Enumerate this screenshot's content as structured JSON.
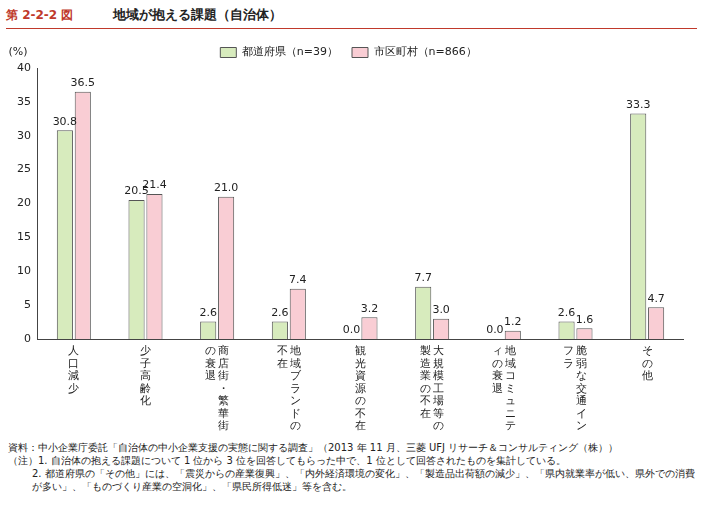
{
  "figure_number": "第 2-2-2 図",
  "chart_data": {
    "type": "bar",
    "title": "地域が抱える課題（自治体）",
    "y_label": "(%)",
    "categories": [
      "人口減少",
      "少子高齢化",
      "商店街・繁華街の衰退",
      "地域ブランドの不在",
      "観光資源の不在",
      "大規模工場等の製造業の不在",
      "地域コミュニティの衰退",
      "脆弱な交通インフラ",
      "その他"
    ],
    "series": [
      {
        "name": "都道府県（n=39）",
        "color": "#d7ebbd",
        "values": [
          30.8,
          20.5,
          2.6,
          2.6,
          0.0,
          7.7,
          0.0,
          2.6,
          33.3
        ],
        "value_labels": [
          "30.8",
          "20.5",
          "2.6",
          "2.6",
          "0.0",
          "7.7",
          "0.0",
          "2.6",
          "33.3"
        ]
      },
      {
        "name": "市区町村（n=866）",
        "color": "#f9cdd4",
        "values": [
          36.5,
          21.4,
          21.0,
          7.4,
          3.2,
          3.0,
          1.2,
          1.6,
          4.7
        ],
        "value_labels": [
          "36.5",
          "21.4",
          "21.0",
          "7.4",
          "3.2",
          "3.0",
          "1.2",
          "1.6",
          "4.7"
        ]
      }
    ],
    "ylim": [
      0,
      40
    ],
    "yticks": [
      0,
      5,
      10,
      15,
      20,
      25,
      30,
      35,
      40
    ],
    "grid": false,
    "legend": "top",
    "data_labels": true
  },
  "source": "資料：中小企業庁委託「自治体の中小企業支援の実態に関する調査」（2013 年 11 月、三菱 UFJ リサーチ＆コンサルティング（株））",
  "notes": [
    "（注）1. 自治体の抱える課題について 1 位から 3 位を回答してもらった中で、1 位として回答されたものを集計している。",
    "2. 都道府県の「その他」には、「震災からの産業復興」、「内外経済環境の変化」、「製造品出荷額の減少」、「県内就業率が低い、県外での消費が多い」、「ものづくり産業の空洞化」、「県民所得低迷」等を含む。"
  ]
}
